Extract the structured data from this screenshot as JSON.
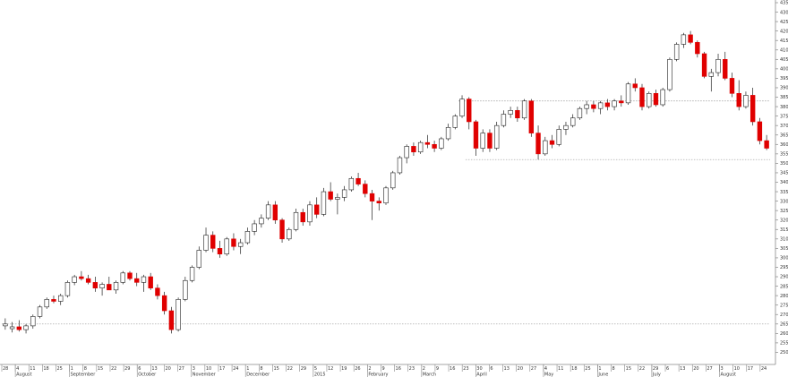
{
  "colors": {
    "up": "#ffffff",
    "down": "#e00000",
    "doji": "#000000",
    "wick": "#222222",
    "axis": "#888888",
    "reference_line": "#9a9a9a"
  },
  "chart_data": {
    "type": "candlestick",
    "title": "",
    "xlabel": "",
    "ylabel": "",
    "ylim": [
      2450,
      4350
    ],
    "grid": false,
    "y_ticks": [
      2500,
      2550,
      2600,
      2650,
      2700,
      2750,
      2800,
      2850,
      2900,
      2950,
      3000,
      3050,
      3100,
      3150,
      3200,
      3250,
      3300,
      3350,
      3400,
      3450,
      3500,
      3550,
      3600,
      3650,
      3700,
      3750,
      3800,
      3850,
      3900,
      3950,
      4000,
      4050,
      4100,
      4150,
      4200,
      4250,
      4300,
      4350
    ],
    "x_day_labels": [
      "28",
      "4",
      "11",
      "18",
      "25",
      "1",
      "8",
      "15",
      "22",
      "29",
      "6",
      "13",
      "20",
      "27",
      "3",
      "10",
      "17",
      "24",
      "1",
      "8",
      "15",
      "22",
      "29",
      "5",
      "12",
      "19",
      "26",
      "2",
      "9",
      "16",
      "23",
      "2",
      "9",
      "16",
      "23",
      "30",
      "6",
      "13",
      "20",
      "27",
      "4",
      "11",
      "18",
      "25",
      "1",
      "8",
      "15",
      "22",
      "29",
      "6",
      "13",
      "20",
      "27",
      "3",
      "10",
      "17",
      "24"
    ],
    "x_month_labels": [
      {
        "label": "August",
        "day_index": 1
      },
      {
        "label": "September",
        "day_index": 5
      },
      {
        "label": "October",
        "day_index": 10
      },
      {
        "label": "November",
        "day_index": 14
      },
      {
        "label": "December",
        "day_index": 18
      },
      {
        "label": "2015",
        "day_index": 23
      },
      {
        "label": "February",
        "day_index": 27
      },
      {
        "label": "March",
        "day_index": 31
      },
      {
        "label": "April",
        "day_index": 35
      },
      {
        "label": "May",
        "day_index": 40
      },
      {
        "label": "June",
        "day_index": 44
      },
      {
        "label": "July",
        "day_index": 48
      },
      {
        "label": "August",
        "day_index": 53
      }
    ],
    "reference_lines": [
      3830,
      3520,
      2650
    ],
    "candles": [
      {
        "o": 2640,
        "h": 2680,
        "l": 2620,
        "c": 2650
      },
      {
        "o": 2625,
        "h": 2660,
        "l": 2605,
        "c": 2635
      },
      {
        "o": 2635,
        "h": 2670,
        "l": 2610,
        "c": 2620
      },
      {
        "o": 2620,
        "h": 2650,
        "l": 2600,
        "c": 2640
      },
      {
        "o": 2640,
        "h": 2700,
        "l": 2625,
        "c": 2690
      },
      {
        "o": 2690,
        "h": 2750,
        "l": 2680,
        "c": 2740
      },
      {
        "o": 2740,
        "h": 2790,
        "l": 2730,
        "c": 2780
      },
      {
        "o": 2780,
        "h": 2800,
        "l": 2760,
        "c": 2770
      },
      {
        "o": 2770,
        "h": 2810,
        "l": 2750,
        "c": 2800
      },
      {
        "o": 2800,
        "h": 2880,
        "l": 2790,
        "c": 2870
      },
      {
        "o": 2870,
        "h": 2910,
        "l": 2855,
        "c": 2900
      },
      {
        "o": 2900,
        "h": 2930,
        "l": 2880,
        "c": 2890
      },
      {
        "o": 2890,
        "h": 2910,
        "l": 2860,
        "c": 2870
      },
      {
        "o": 2870,
        "h": 2900,
        "l": 2820,
        "c": 2840
      },
      {
        "o": 2840,
        "h": 2870,
        "l": 2800,
        "c": 2860
      },
      {
        "o": 2860,
        "h": 2900,
        "l": 2840,
        "c": 2830
      },
      {
        "o": 2830,
        "h": 2880,
        "l": 2810,
        "c": 2870
      },
      {
        "o": 2870,
        "h": 2930,
        "l": 2860,
        "c": 2920
      },
      {
        "o": 2920,
        "h": 2930,
        "l": 2880,
        "c": 2890
      },
      {
        "o": 2890,
        "h": 2920,
        "l": 2850,
        "c": 2870
      },
      {
        "o": 2870,
        "h": 2910,
        "l": 2820,
        "c": 2900
      },
      {
        "o": 2900,
        "h": 2920,
        "l": 2830,
        "c": 2840
      },
      {
        "o": 2840,
        "h": 2860,
        "l": 2780,
        "c": 2800
      },
      {
        "o": 2800,
        "h": 2820,
        "l": 2700,
        "c": 2720
      },
      {
        "o": 2720,
        "h": 2740,
        "l": 2600,
        "c": 2620
      },
      {
        "o": 2620,
        "h": 2790,
        "l": 2610,
        "c": 2780
      },
      {
        "o": 2780,
        "h": 2900,
        "l": 2770,
        "c": 2880
      },
      {
        "o": 2880,
        "h": 2960,
        "l": 2870,
        "c": 2950
      },
      {
        "o": 2950,
        "h": 3060,
        "l": 2940,
        "c": 3040
      },
      {
        "o": 3040,
        "h": 3160,
        "l": 3030,
        "c": 3120
      },
      {
        "o": 3120,
        "h": 3140,
        "l": 3030,
        "c": 3050
      },
      {
        "o": 3050,
        "h": 3090,
        "l": 3000,
        "c": 3020
      },
      {
        "o": 3020,
        "h": 3110,
        "l": 3010,
        "c": 3100
      },
      {
        "o": 3100,
        "h": 3130,
        "l": 3040,
        "c": 3060
      },
      {
        "o": 3060,
        "h": 3100,
        "l": 3020,
        "c": 3080
      },
      {
        "o": 3080,
        "h": 3160,
        "l": 3070,
        "c": 3140
      },
      {
        "o": 3140,
        "h": 3200,
        "l": 3120,
        "c": 3180
      },
      {
        "o": 3180,
        "h": 3230,
        "l": 3160,
        "c": 3210
      },
      {
        "o": 3210,
        "h": 3300,
        "l": 3200,
        "c": 3280
      },
      {
        "o": 3280,
        "h": 3300,
        "l": 3180,
        "c": 3200
      },
      {
        "o": 3200,
        "h": 3210,
        "l": 3080,
        "c": 3100
      },
      {
        "o": 3100,
        "h": 3160,
        "l": 3090,
        "c": 3150
      },
      {
        "o": 3150,
        "h": 3260,
        "l": 3140,
        "c": 3240
      },
      {
        "o": 3240,
        "h": 3260,
        "l": 3170,
        "c": 3190
      },
      {
        "o": 3190,
        "h": 3300,
        "l": 3170,
        "c": 3280
      },
      {
        "o": 3280,
        "h": 3320,
        "l": 3210,
        "c": 3230
      },
      {
        "o": 3230,
        "h": 3370,
        "l": 3220,
        "c": 3350
      },
      {
        "o": 3350,
        "h": 3400,
        "l": 3300,
        "c": 3310
      },
      {
        "o": 3310,
        "h": 3340,
        "l": 3230,
        "c": 3320
      },
      {
        "o": 3320,
        "h": 3380,
        "l": 3300,
        "c": 3360
      },
      {
        "o": 3360,
        "h": 3430,
        "l": 3350,
        "c": 3420
      },
      {
        "o": 3420,
        "h": 3450,
        "l": 3380,
        "c": 3390
      },
      {
        "o": 3390,
        "h": 3410,
        "l": 3320,
        "c": 3340
      },
      {
        "o": 3340,
        "h": 3360,
        "l": 3200,
        "c": 3300
      },
      {
        "o": 3300,
        "h": 3320,
        "l": 3250,
        "c": 3290
      },
      {
        "o": 3290,
        "h": 3380,
        "l": 3280,
        "c": 3370
      },
      {
        "o": 3370,
        "h": 3460,
        "l": 3360,
        "c": 3450
      },
      {
        "o": 3450,
        "h": 3540,
        "l": 3440,
        "c": 3530
      },
      {
        "o": 3530,
        "h": 3600,
        "l": 3500,
        "c": 3590
      },
      {
        "o": 3590,
        "h": 3610,
        "l": 3540,
        "c": 3560
      },
      {
        "o": 3560,
        "h": 3620,
        "l": 3550,
        "c": 3610
      },
      {
        "o": 3610,
        "h": 3650,
        "l": 3580,
        "c": 3600
      },
      {
        "o": 3600,
        "h": 3620,
        "l": 3560,
        "c": 3580
      },
      {
        "o": 3580,
        "h": 3640,
        "l": 3570,
        "c": 3630
      },
      {
        "o": 3630,
        "h": 3710,
        "l": 3620,
        "c": 3690
      },
      {
        "o": 3690,
        "h": 3760,
        "l": 3680,
        "c": 3750
      },
      {
        "o": 3750,
        "h": 3860,
        "l": 3740,
        "c": 3840
      },
      {
        "o": 3840,
        "h": 3850,
        "l": 3680,
        "c": 3720
      },
      {
        "o": 3720,
        "h": 3730,
        "l": 3540,
        "c": 3580
      },
      {
        "o": 3580,
        "h": 3680,
        "l": 3560,
        "c": 3660
      },
      {
        "o": 3660,
        "h": 3680,
        "l": 3560,
        "c": 3580
      },
      {
        "o": 3580,
        "h": 3720,
        "l": 3570,
        "c": 3700
      },
      {
        "o": 3700,
        "h": 3780,
        "l": 3690,
        "c": 3760
      },
      {
        "o": 3760,
        "h": 3800,
        "l": 3740,
        "c": 3780
      },
      {
        "o": 3780,
        "h": 3800,
        "l": 3720,
        "c": 3740
      },
      {
        "o": 3740,
        "h": 3840,
        "l": 3730,
        "c": 3830
      },
      {
        "o": 3830,
        "h": 3840,
        "l": 3640,
        "c": 3660
      },
      {
        "o": 3660,
        "h": 3700,
        "l": 3520,
        "c": 3550
      },
      {
        "o": 3550,
        "h": 3640,
        "l": 3540,
        "c": 3620
      },
      {
        "o": 3620,
        "h": 3650,
        "l": 3580,
        "c": 3600
      },
      {
        "o": 3600,
        "h": 3700,
        "l": 3590,
        "c": 3680
      },
      {
        "o": 3680,
        "h": 3720,
        "l": 3650,
        "c": 3700
      },
      {
        "o": 3700,
        "h": 3760,
        "l": 3690,
        "c": 3740
      },
      {
        "o": 3740,
        "h": 3800,
        "l": 3730,
        "c": 3790
      },
      {
        "o": 3790,
        "h": 3830,
        "l": 3760,
        "c": 3810
      },
      {
        "o": 3810,
        "h": 3830,
        "l": 3770,
        "c": 3790
      },
      {
        "o": 3790,
        "h": 3830,
        "l": 3760,
        "c": 3820
      },
      {
        "o": 3820,
        "h": 3840,
        "l": 3780,
        "c": 3800
      },
      {
        "o": 3800,
        "h": 3840,
        "l": 3780,
        "c": 3830
      },
      {
        "o": 3830,
        "h": 3860,
        "l": 3800,
        "c": 3820
      },
      {
        "o": 3820,
        "h": 3930,
        "l": 3810,
        "c": 3920
      },
      {
        "o": 3920,
        "h": 3950,
        "l": 3880,
        "c": 3900
      },
      {
        "o": 3900,
        "h": 3920,
        "l": 3780,
        "c": 3800
      },
      {
        "o": 3800,
        "h": 3880,
        "l": 3790,
        "c": 3870
      },
      {
        "o": 3870,
        "h": 3890,
        "l": 3800,
        "c": 3810
      },
      {
        "o": 3810,
        "h": 3900,
        "l": 3800,
        "c": 3890
      },
      {
        "o": 3890,
        "h": 4060,
        "l": 3880,
        "c": 4050
      },
      {
        "o": 4050,
        "h": 4140,
        "l": 4040,
        "c": 4130
      },
      {
        "o": 4130,
        "h": 4190,
        "l": 4110,
        "c": 4180
      },
      {
        "o": 4180,
        "h": 4200,
        "l": 4130,
        "c": 4140
      },
      {
        "o": 4140,
        "h": 4150,
        "l": 4060,
        "c": 4080
      },
      {
        "o": 4080,
        "h": 4090,
        "l": 3950,
        "c": 3960
      },
      {
        "o": 3960,
        "h": 4000,
        "l": 3880,
        "c": 3980
      },
      {
        "o": 3980,
        "h": 4080,
        "l": 3960,
        "c": 4050
      },
      {
        "o": 4050,
        "h": 4090,
        "l": 3940,
        "c": 3950
      },
      {
        "o": 3950,
        "h": 3980,
        "l": 3850,
        "c": 3870
      },
      {
        "o": 3870,
        "h": 3940,
        "l": 3780,
        "c": 3800
      },
      {
        "o": 3800,
        "h": 3880,
        "l": 3790,
        "c": 3860
      },
      {
        "o": 3860,
        "h": 3900,
        "l": 3700,
        "c": 3720
      },
      {
        "o": 3720,
        "h": 3740,
        "l": 3600,
        "c": 3620
      },
      {
        "o": 3620,
        "h": 3650,
        "l": 3570,
        "c": 3580
      }
    ]
  }
}
